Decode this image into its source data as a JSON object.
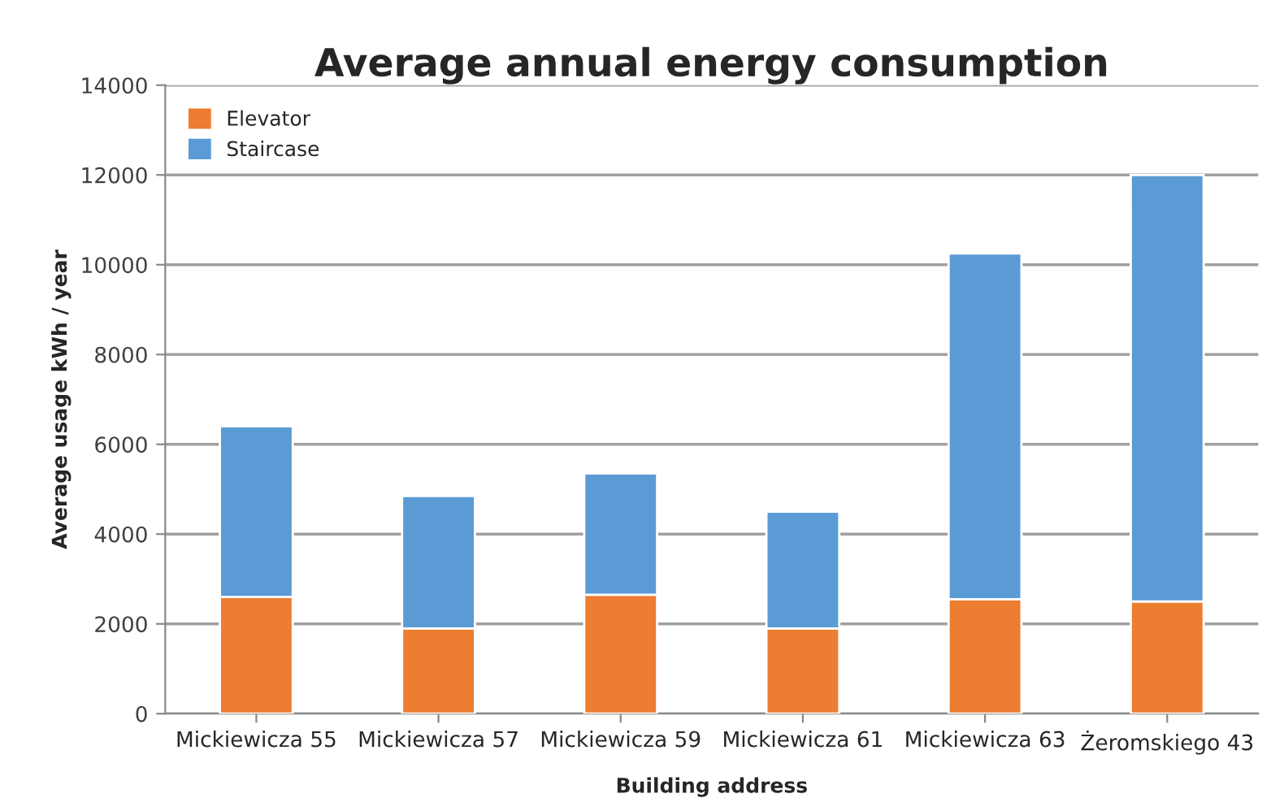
{
  "chart_data": {
    "type": "bar",
    "title": "Average annual energy consumption",
    "xlabel": "Building address",
    "ylabel": "Average usage kWh / year",
    "categories": [
      "Mickiewicza 55",
      "Mickiewicza 57",
      "Mickiewicza 59",
      "Mickiewicza 61",
      "Mickiewicza 63",
      "Żeromskiego 43"
    ],
    "series": [
      {
        "name": "Elevator",
        "color": "#ed7d31",
        "values": [
          2600,
          1900,
          2650,
          1900,
          2550,
          2500
        ]
      },
      {
        "name": "Staircase",
        "color": "#5b9bd5",
        "values": [
          3800,
          2950,
          2700,
          2600,
          7700,
          9500
        ]
      }
    ],
    "stacked": true,
    "ylim": [
      0,
      14000
    ],
    "yticks": [
      0,
      2000,
      4000,
      6000,
      8000,
      10000,
      12000,
      14000
    ],
    "grid": "y",
    "legend": "top left"
  }
}
